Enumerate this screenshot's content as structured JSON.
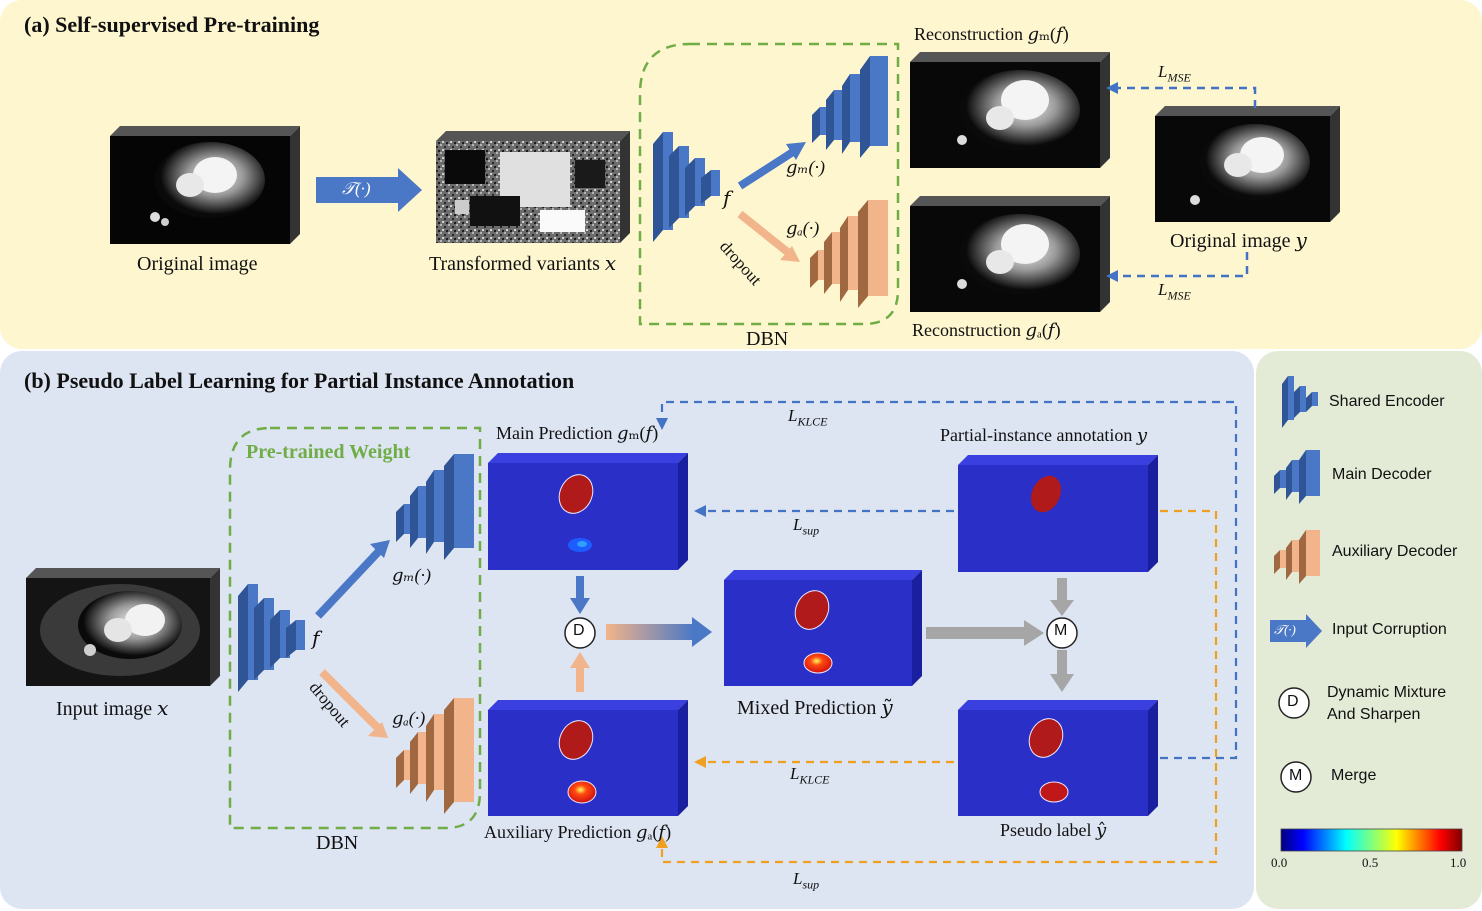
{
  "panel_a": {
    "title": "(a) Self-supervised Pre-training",
    "original_image": "Original image",
    "transform": "𝒯(·)",
    "transformed": "Transformed variants 𝑥",
    "f": "𝑓",
    "gm": "𝑔ₘ(·)",
    "ga": "𝑔ₐ(·)",
    "dropout": "dropout",
    "dbn": "DBN",
    "recon_m": "Reconstruction 𝑔ₘ(𝑓)",
    "recon_a": "Reconstruction 𝑔ₐ(𝑓)",
    "original_y": "Original image 𝑦",
    "lmse_top": "L_MSE",
    "lmse_bottom": "L_MSE"
  },
  "panel_b": {
    "title": "(b) Pseudo Label Learning for Partial Instance Annotation",
    "pretrained": "Pre-trained Weight",
    "input": "Input image 𝑥",
    "f": "𝑓",
    "gm": "𝑔ₘ(·)",
    "ga": "𝑔ₐ(·)",
    "dropout": "dropout",
    "dbn": "DBN",
    "main_pred": "Main Prediction 𝑔ₘ(𝑓)",
    "aux_pred": "Auxiliary Prediction 𝑔ₐ(𝑓)",
    "mixed": "Mixed Prediction 𝑦̃",
    "partial": "Partial-instance annotation 𝑦",
    "pseudo": "Pseudo label 𝑦̂",
    "lklce_top": "L_KLCE",
    "lsup_top": "L_sup",
    "lklce_bottom": "L_KLCE",
    "lsup_bottom": "L_sup",
    "d": "D",
    "m": "M"
  },
  "legend": {
    "shared_encoder": "Shared Encoder",
    "main_decoder": "Main Decoder",
    "aux_decoder": "Auxiliary Decoder",
    "input_corruption": "Input Corruption",
    "corruption_symbol": "𝒯(·)",
    "dynamic_1": "Dynamic Mixture",
    "dynamic_2": "And Sharpen",
    "merge": "Merge",
    "d": "D",
    "m": "M",
    "colorbar_ticks": [
      "0.0",
      "0.5",
      "1.0"
    ]
  },
  "colors": {
    "panel_a_bg": "#fdf6cf",
    "panel_b_bg": "#dde4f2",
    "legend_bg": "#e3ebd7",
    "encoder_blue": "#4a78c6",
    "decoder_peach": "#f2b48a",
    "dbn_green": "#70ad47",
    "loss_blue": "#4472c4",
    "loss_orange": "#f0a020",
    "seg_navy": "#2a2fc7",
    "seg_red": "#b01a1a"
  }
}
